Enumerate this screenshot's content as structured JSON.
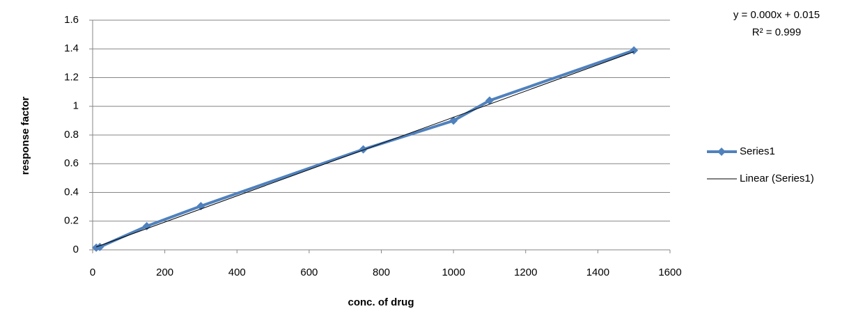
{
  "chart_data": {
    "type": "scatter",
    "x_label": "conc. of drug",
    "y_label": "response factor",
    "annotations": [
      "y = 0.000x + 0.015",
      "R² = 0.999"
    ],
    "series": [
      {
        "name": "Series1",
        "color": "#4f81bd",
        "line": true,
        "marker": "diamond",
        "x": [
          10,
          20,
          150,
          300,
          750,
          1000,
          1100,
          1500
        ],
        "values": [
          0.015,
          0.02,
          0.165,
          0.305,
          0.7,
          0.9,
          1.04,
          1.39
        ]
      },
      {
        "name": "Linear (Series1)",
        "color": "#000000",
        "line": true,
        "marker": "none",
        "x": [
          10,
          1500
        ],
        "values": [
          0.02,
          1.38
        ]
      }
    ],
    "xlim": [
      0,
      1600
    ],
    "xticks": [
      0,
      200,
      400,
      600,
      800,
      1000,
      1200,
      1400,
      1600
    ],
    "ylim": [
      0,
      1.6
    ],
    "yticks": [
      0,
      0.2,
      0.4,
      0.6,
      0.8,
      1,
      1.2,
      1.4,
      1.6
    ],
    "grid": true,
    "legend": "right"
  }
}
